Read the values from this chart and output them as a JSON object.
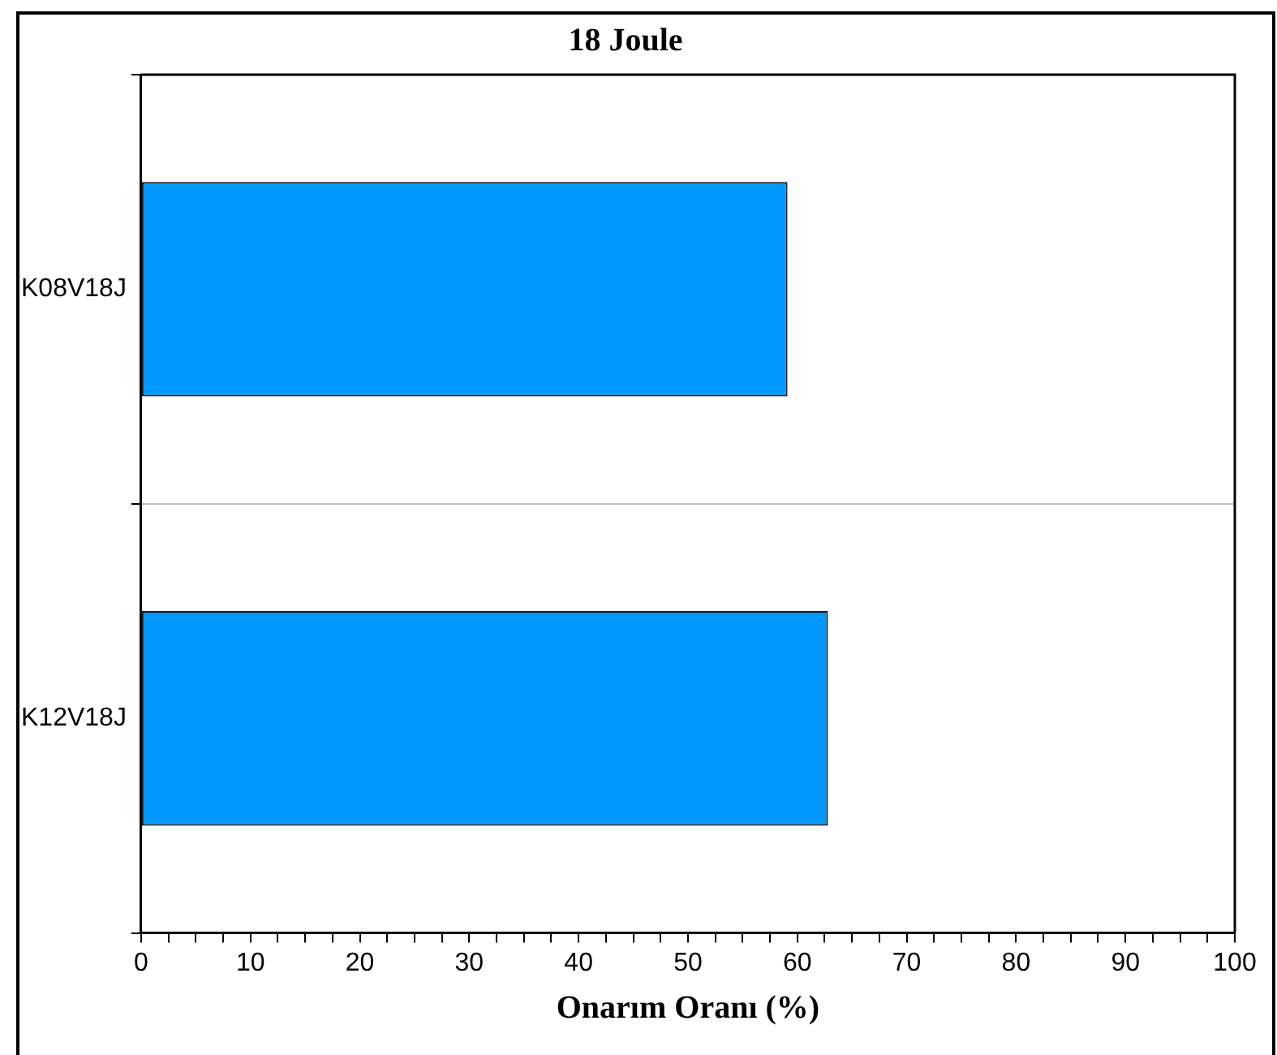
{
  "chart_data": {
    "type": "bar",
    "orientation": "horizontal",
    "title": "18 Joule",
    "xlabel": "Onarım Oranı (%)",
    "categories": [
      "K08V18J",
      "K12V18J"
    ],
    "values": [
      59.1,
      62.8
    ],
    "color": "#0099ff",
    "xlim": [
      0,
      100
    ],
    "xticks": [
      0,
      {
        "value": 2.5,
        "label": null
      },
      {
        "value": 5,
        "label": null
      },
      {
        "value": 7.5,
        "label": null
      },
      10,
      {
        "value": 12.5,
        "label": null
      },
      {
        "value": 15,
        "label": null
      },
      {
        "value": 17.5,
        "label": null
      },
      20,
      {
        "value": 22.5,
        "label": null
      },
      {
        "value": 25,
        "label": null
      },
      {
        "value": 27.5,
        "label": null
      },
      30,
      {
        "value": 32.5,
        "label": null
      },
      {
        "value": 35,
        "label": null
      },
      {
        "value": 37.5,
        "label": null
      },
      40,
      {
        "value": 42.5,
        "label": null
      },
      {
        "value": 45,
        "label": null
      },
      {
        "value": 47.5,
        "label": null
      },
      50,
      {
        "value": 52.5,
        "label": null
      },
      {
        "value": 55,
        "label": null
      },
      {
        "value": 57.5,
        "label": null
      },
      60,
      {
        "value": 62.5,
        "label": null
      },
      {
        "value": 65,
        "label": null
      },
      {
        "value": 67.5,
        "label": null
      },
      70,
      {
        "value": 72.5,
        "label": null
      },
      {
        "value": 75,
        "label": null
      },
      {
        "value": 77.5,
        "label": null
      },
      80,
      {
        "value": 82.5,
        "label": null
      },
      {
        "value": 85,
        "label": null
      },
      {
        "value": 87.5,
        "label": null
      },
      90,
      {
        "value": 92.5,
        "label": null
      },
      {
        "value": 95,
        "label": null
      },
      {
        "value": 97.5,
        "label": null
      },
      100
    ],
    "grid": "y",
    "legend": false
  }
}
